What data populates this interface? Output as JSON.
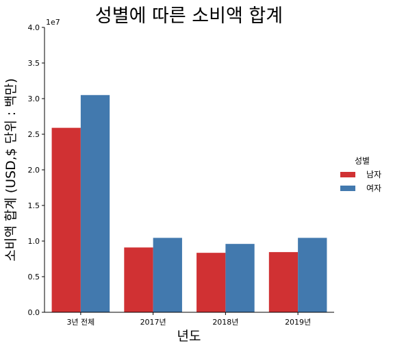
{
  "chart_data": {
    "type": "bar",
    "title": "성별에 따른 소비액 합계",
    "xlabel": "년도",
    "ylabel": "소비액 합계 (USD,$ 단위 : 백만)",
    "y_offset_label": "1e7",
    "categories": [
      "3년 전체",
      "2017년",
      "2018년",
      "2019년"
    ],
    "ylim": [
      0,
      40000000
    ],
    "yticks": [
      0,
      5000000,
      10000000,
      15000000,
      20000000,
      25000000,
      30000000,
      35000000,
      40000000
    ],
    "ytick_labels": [
      "0.0",
      "0.5",
      "1.0",
      "1.5",
      "2.0",
      "2.5",
      "3.0",
      "3.5",
      "4.0"
    ],
    "legend_title": "성별",
    "legend_position": "right",
    "grid": false,
    "series": [
      {
        "name": "남자",
        "color": "#d03133",
        "values": [
          25900000,
          9100000,
          8350000,
          8450000
        ]
      },
      {
        "name": "여자",
        "color": "#4279ae",
        "values": [
          30500000,
          10450000,
          9600000,
          10450000
        ]
      }
    ]
  }
}
